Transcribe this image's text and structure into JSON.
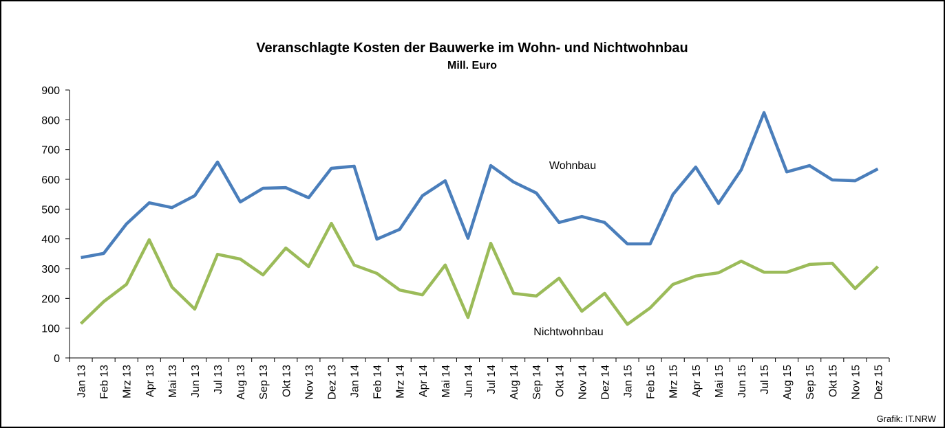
{
  "chart_data": {
    "type": "line",
    "title": "Veranschlagte Kosten der Bauwerke im Wohn- und Nichtwohnbau",
    "subtitle": "Mill. Euro",
    "categories": [
      "Jan 13",
      "Feb 13",
      "Mrz 13",
      "Apr 13",
      "Mai 13",
      "Jun 13",
      "Jul 13",
      "Aug 13",
      "Sep 13",
      "Okt 13",
      "Nov 13",
      "Dez 13",
      "Jan 14",
      "Feb 14",
      "Mrz 14",
      "Apr 14",
      "Mai 14",
      "Jun 14",
      "Jul 14",
      "Aug 14",
      "Sep 14",
      "Okt 14",
      "Nov 14",
      "Dez 14",
      "Jan 15",
      "Feb 15",
      "Mrz 15",
      "Apr 15",
      "Mai 15",
      "Jun 15",
      "Jul 15",
      "Aug 15",
      "Sep 15",
      "Okt 15",
      "Nov 15",
      "Dez 15"
    ],
    "series": [
      {
        "name": "Wohnbau",
        "color": "#4a7ebb",
        "values": [
          337,
          351,
          450,
          521,
          505,
          545,
          658,
          524,
          570,
          572,
          538,
          637,
          644,
          399,
          432,
          545,
          595,
          402,
          646,
          591,
          554,
          455,
          475,
          455,
          383,
          383,
          549,
          641,
          519,
          632,
          824,
          625,
          646,
          598,
          595,
          635
        ]
      },
      {
        "name": "Nichtwohnbau",
        "color": "#9bbb59",
        "values": [
          115,
          189,
          247,
          397,
          238,
          164,
          348,
          332,
          279,
          369,
          307,
          452,
          312,
          284,
          228,
          212,
          312,
          136,
          385,
          217,
          208,
          268,
          157,
          217,
          113,
          168,
          247,
          275,
          286,
          325,
          288,
          288,
          314,
          318,
          233,
          307
        ]
      }
    ],
    "ylim": [
      0,
      900
    ],
    "yticks": [
      0,
      100,
      200,
      300,
      400,
      500,
      600,
      700,
      800,
      900
    ],
    "source": "Grafik: IT.NRW"
  }
}
